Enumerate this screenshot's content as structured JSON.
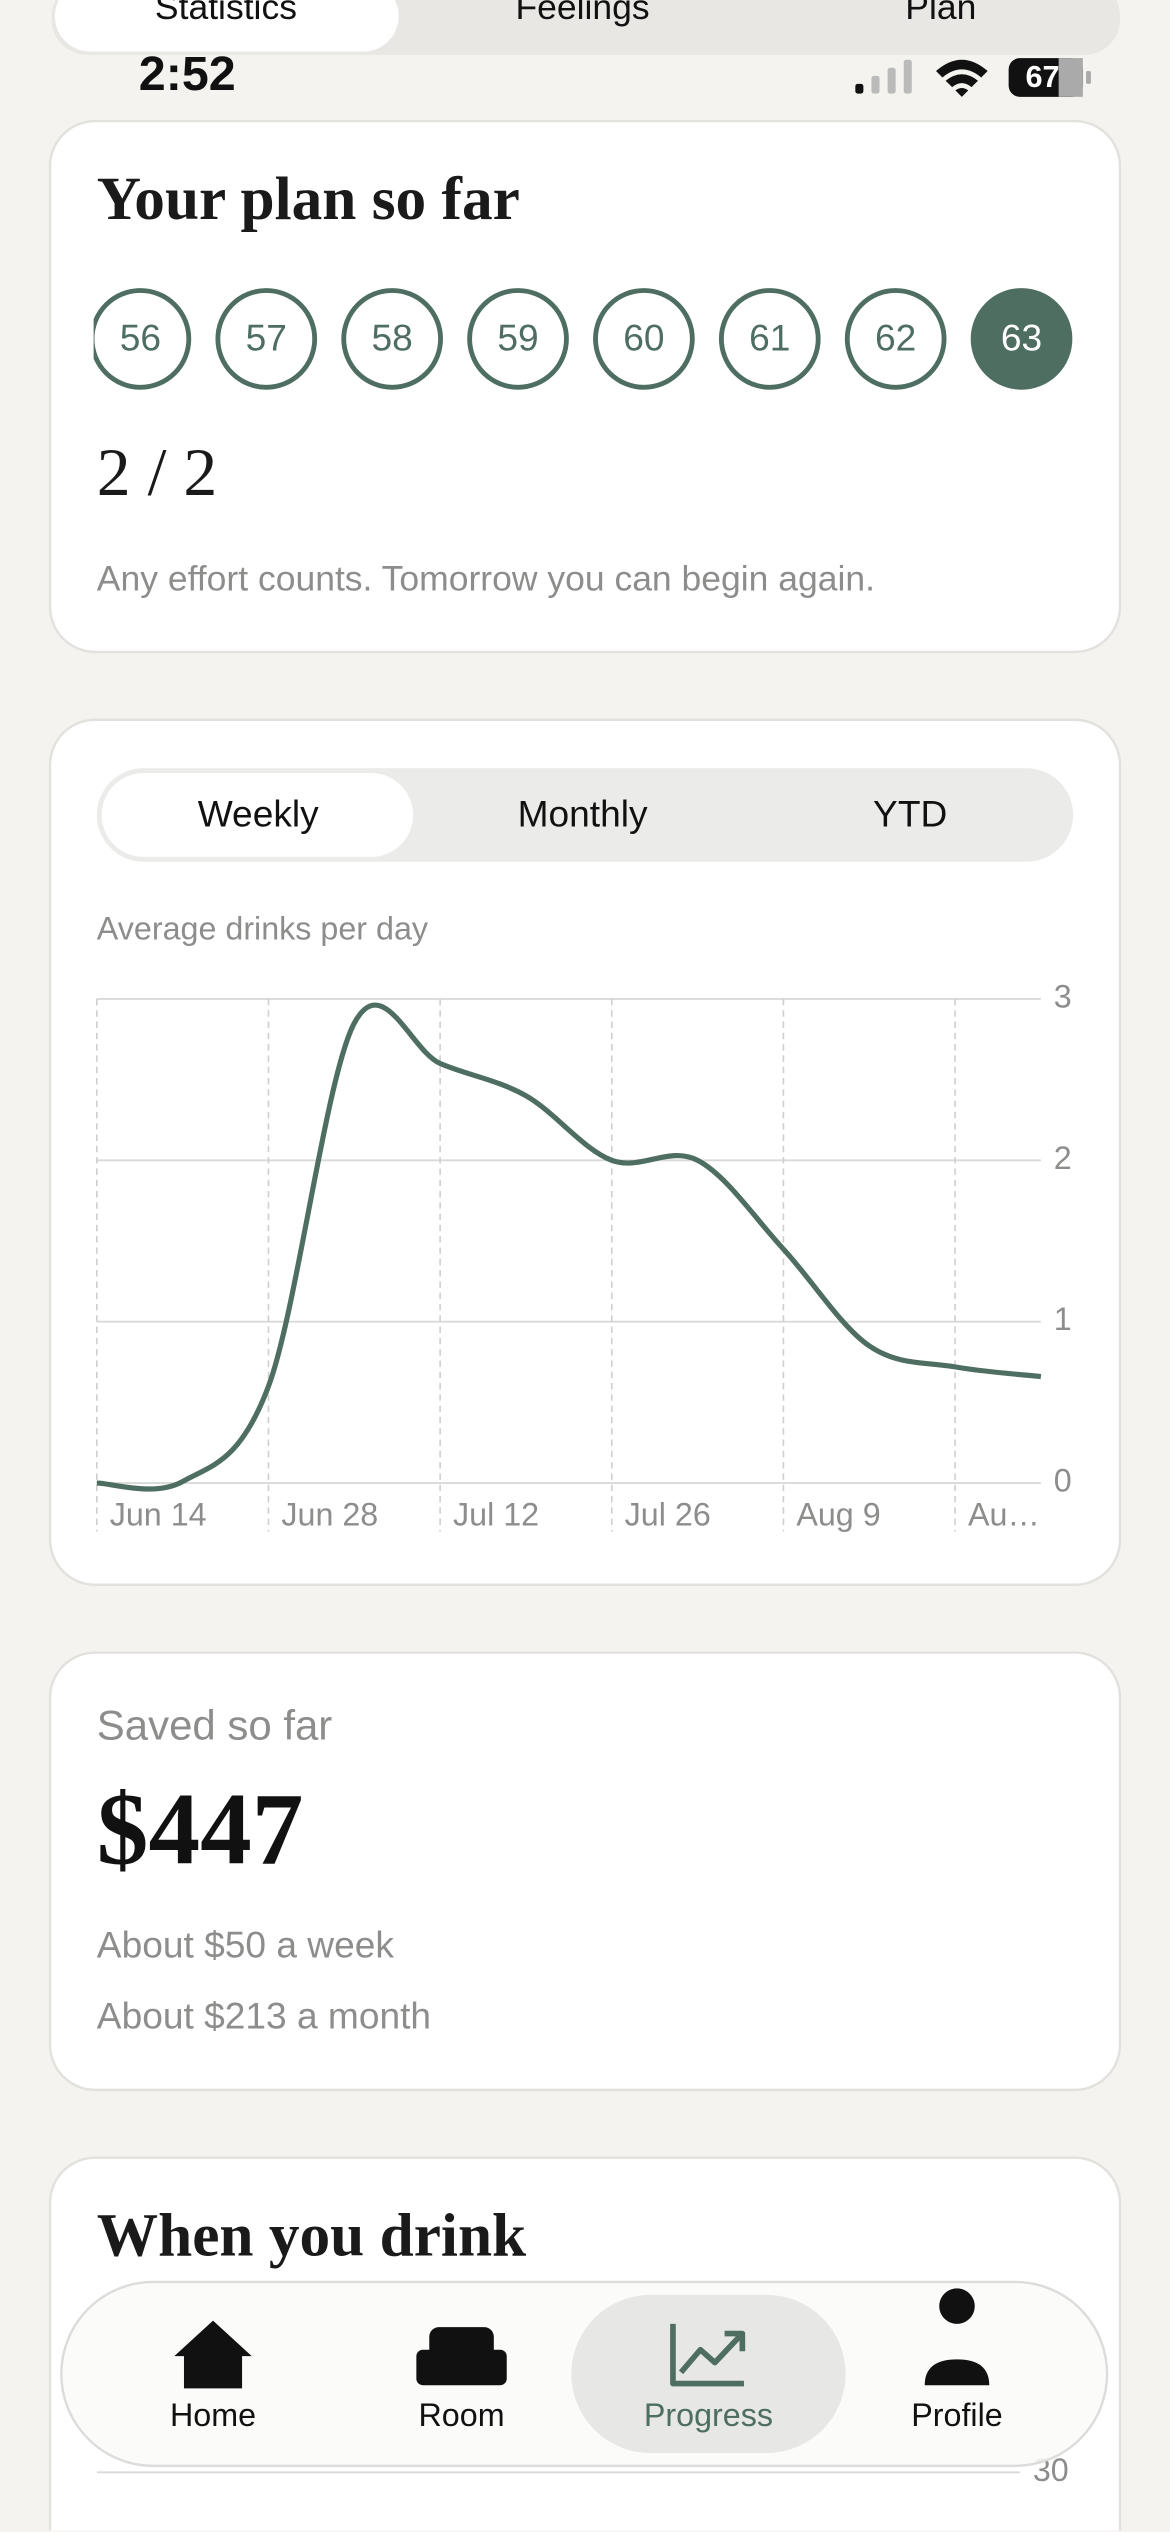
{
  "tabs": {
    "items": [
      "Statistics",
      "Feelings",
      "Plan"
    ],
    "selected": 0
  },
  "status_bar": {
    "time": "2:52",
    "battery": "67"
  },
  "plan_card": {
    "title": "Your plan so far",
    "days": [
      56,
      57,
      58,
      59,
      60,
      61,
      62,
      63
    ],
    "selected": 7,
    "score": "2 / 2",
    "message": "Any effort counts. Tomorrow you can begin again."
  },
  "chart_card": {
    "periods": [
      "Weekly",
      "Monthly",
      "YTD"
    ],
    "selected": 0
  },
  "chart_data": {
    "type": "line",
    "title": "Average drinks per day",
    "categories": [
      "Jun 14",
      null,
      "Jun 28",
      null,
      "Jul 12",
      null,
      "Jul 26",
      null,
      "Aug 9",
      null,
      "Au…",
      null
    ],
    "values": [
      0,
      0.01,
      0.6,
      2.85,
      2.6,
      2.4,
      2.0,
      2.0,
      1.45,
      0.85,
      0.72,
      0.66
    ],
    "color": "#4f6e62",
    "ylim": [
      0,
      3
    ],
    "yticks": [
      0,
      1,
      2,
      3
    ],
    "grid": true
  },
  "savings_card": {
    "label": "Saved so far",
    "amount": "$447",
    "weekly": "About $50 a week",
    "monthly": "About $213 a month"
  },
  "drink_card": {
    "title": "When you drink",
    "yticks": [
      30
    ]
  },
  "nav": {
    "items": [
      "Home",
      "Room",
      "Progress",
      "Profile"
    ],
    "selected": 2
  }
}
